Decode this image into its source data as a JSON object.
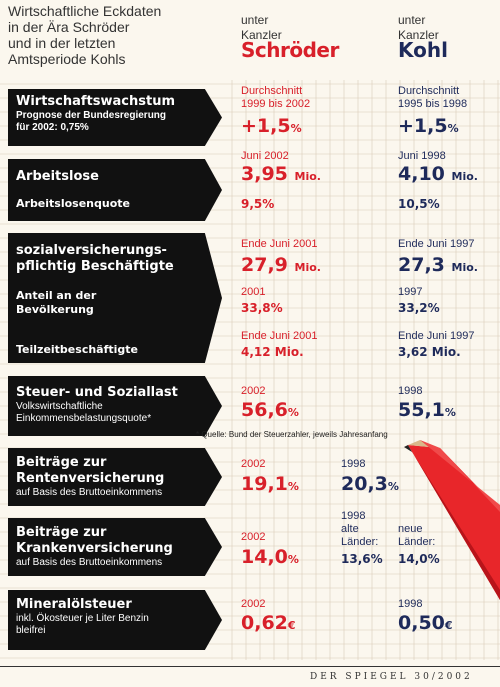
{
  "title": [
    "Wirtschaftliche Eckdaten",
    "in der Ära Schröder",
    "und in der letzten",
    "Amtsperiode Kohls"
  ],
  "columns": {
    "schroeder": {
      "pre1": "unter",
      "pre2": "Kanzler",
      "name": "Schröder"
    },
    "kohl": {
      "pre1": "unter",
      "pre2": "Kanzler",
      "name": "Kohl"
    }
  },
  "footnote": "* Quelle: Bund der Steuerzahler, jeweils Jahresanfang",
  "footer": "DER SPIEGEL 30/2002",
  "colors": {
    "schroeder": "#d8202a",
    "kohl": "#1e2a5a",
    "arrow": "#111111",
    "pencil": "#e8262a"
  },
  "chart_data": {
    "type": "table",
    "title": "Wirtschaftliche Eckdaten in der Ära Schröder und in der letzten Amtsperiode Kohls",
    "columns": [
      "unter Kanzler Schröder",
      "unter Kanzler Kohl"
    ],
    "rows": [
      {
        "id": "wachstum",
        "label": "Wirtschaftswachstum",
        "sublabel": "Prognose der Bundesregierung für 2002: 0,75%",
        "schroeder": {
          "period": "Durchschnitt 1999 bis 2002",
          "value": "+1,5",
          "unit": "%"
        },
        "kohl": {
          "period": "Durchschnitt 1995 bis 1998",
          "value": "+1,5",
          "unit": "%"
        }
      },
      {
        "id": "arbeitslose",
        "label": "Arbeitslose",
        "schroeder": {
          "period": "Juni 2002",
          "value": "3,95",
          "unit": "Mio."
        },
        "kohl": {
          "period": "Juni 1998",
          "value": "4,10",
          "unit": "Mio."
        }
      },
      {
        "id": "arbeitslosenquote",
        "label": "Arbeitslosenquote",
        "schroeder": {
          "value": "9,5",
          "unit": "%"
        },
        "kohl": {
          "value": "10,5",
          "unit": "%"
        }
      },
      {
        "id": "beschaeftigte",
        "label": "sozialversicherungs- pflichtig Beschäftigte",
        "schroeder": {
          "period": "Ende Juni 2001",
          "value": "27,9",
          "unit": "Mio."
        },
        "kohl": {
          "period": "Ende Juni 1997",
          "value": "27,3",
          "unit": "Mio."
        }
      },
      {
        "id": "anteil",
        "label": "Anteil an der Bevölkerung",
        "schroeder": {
          "period": "2001",
          "value": "33,8",
          "unit": "%"
        },
        "kohl": {
          "period": "1997",
          "value": "33,2",
          "unit": "%"
        }
      },
      {
        "id": "teilzeit",
        "label": "Teilzeitbeschäftigte",
        "schroeder": {
          "period": "Ende Juni 2001",
          "value": "4,12",
          "unit": "Mio."
        },
        "kohl": {
          "period": "Ende Juni 1997",
          "value": "3,62",
          "unit": "Mio."
        }
      },
      {
        "id": "steuer",
        "label": "Steuer- und Soziallast",
        "sublabel": "Volkswirtschaftliche Einkommensbelastungsquote*",
        "schroeder": {
          "period": "2002",
          "value": "56,6",
          "unit": "%"
        },
        "kohl": {
          "period": "1998",
          "value": "55,1",
          "unit": "%"
        }
      },
      {
        "id": "rente",
        "label": "Beiträge zur Rentenversicherung",
        "sublabel": "auf Basis des Bruttoeinkommens",
        "schroeder": {
          "period": "2002",
          "value": "19,1",
          "unit": "%"
        },
        "kohl": {
          "period": "1998",
          "value": "20,3",
          "unit": "%"
        }
      },
      {
        "id": "kranken",
        "label": "Beiträge zur Krankenversicherung",
        "sublabel": "auf Basis des Bruttoeinkommens",
        "schroeder": {
          "period": "2002",
          "value": "14,0",
          "unit": "%"
        },
        "kohl": {
          "period": "1998",
          "alte_label": "alte Länder:",
          "alte_value": "13,6",
          "neue_label": "neue Länder:",
          "neue_value": "14,0",
          "unit": "%"
        }
      },
      {
        "id": "mineraloel",
        "label": "Mineralölsteuer",
        "sublabel": "inkl. Ökosteuer je Liter Benzin bleifrei",
        "schroeder": {
          "period": "2002",
          "value": "0,62",
          "unit": "€"
        },
        "kohl": {
          "period": "1998",
          "value": "0,50",
          "unit": "€"
        }
      }
    ]
  },
  "labels": {
    "wachstum": {
      "big": "Wirtschaftswachstum",
      "small1": "Prognose der Bundesregierung",
      "small2": "für 2002: 0,75%"
    },
    "arbeitslose": {
      "big": "Arbeitslose",
      "sub": "Arbeitslosenquote"
    },
    "beschaeftigte": {
      "big1": "sozialversicherungs-",
      "big2": "pflichtig Beschäftigte",
      "sub1": "Anteil an der",
      "sub2": "Bevölkerung",
      "sub3": "Teilzeitbeschäftigte"
    },
    "steuer": {
      "big": "Steuer- und Soziallast",
      "small1": "Volkswirtschaftliche",
      "small2": "Einkommensbelastungsquote*"
    },
    "rente": {
      "big1": "Beiträge zur",
      "big2": "Rentenversicherung",
      "small": "auf Basis des Bruttoeinkommens"
    },
    "kranken": {
      "big1": "Beiträge zur",
      "big2": "Krankenversicherung",
      "small": "auf Basis des Bruttoeinkommens"
    },
    "mineraloel": {
      "big": "Mineralölsteuer",
      "small1": "inkl. Ökosteuer je Liter Benzin",
      "small2": "bleifrei"
    }
  },
  "cells": {
    "wachstum": {
      "s_p1": "Durchschnitt",
      "s_p2": "1999 bis 2002",
      "k_p1": "Durchschnitt",
      "k_p2": "1995 bis 1998"
    },
    "anteil_s": "2001",
    "anteil_k": "1997",
    "kranken_k": {
      "alte1": "alte",
      "alte2": "Länder:",
      "neue1": "neue",
      "neue2": "Länder:"
    }
  }
}
